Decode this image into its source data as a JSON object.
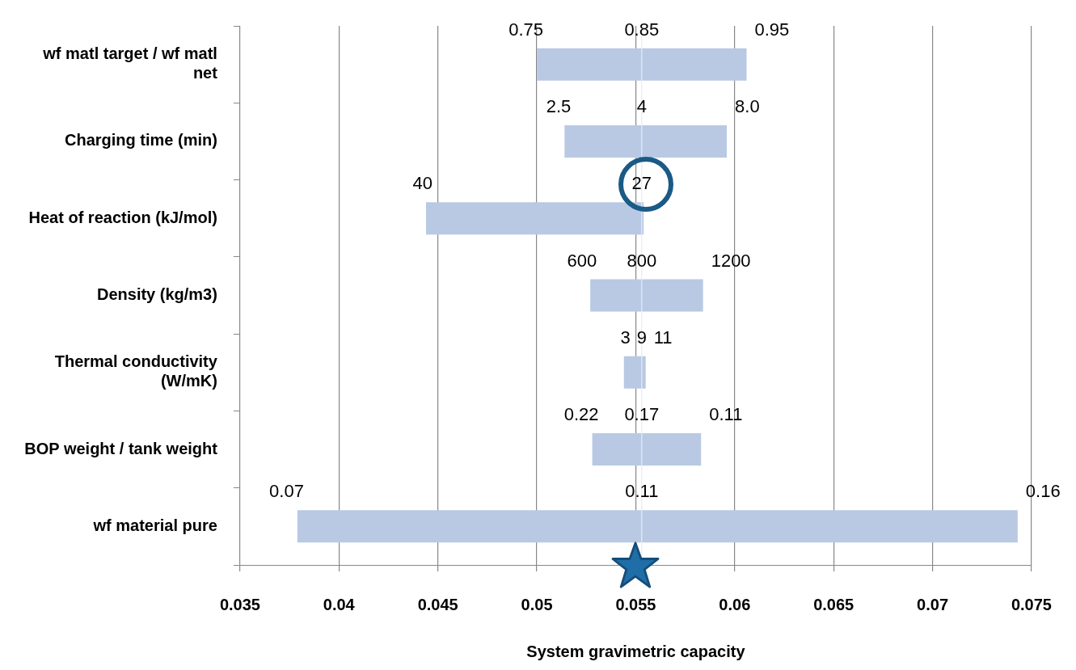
{
  "chart_data": {
    "type": "bar",
    "orientation": "horizontal",
    "xlabel": "System gravimetric capacity",
    "categories": [
      "wf matl target / wf matl net",
      "Charging time (min)",
      "Heat of reaction (kJ/mol)",
      "Density (kg/m3)",
      "Thermal conductivity (W/mK)",
      "BOP weight / tank weight",
      "wf material pure"
    ],
    "base": [
      0.05,
      0.0514,
      0.0444,
      0.0527,
      0.0544,
      0.0528,
      0.0379
    ],
    "values": [
      0.0106,
      0.0082,
      0.011,
      0.0057,
      0.0011,
      0.0055,
      0.0364
    ],
    "color": "#b9c9e3",
    "xlim": [
      0.035,
      0.075
    ],
    "xticks": [
      0.035,
      0.04,
      0.045,
      0.05,
      0.055,
      0.06,
      0.065,
      0.07,
      0.075
    ],
    "grid": "x",
    "legend": false,
    "ref_lines": [
      {
        "axis": "x",
        "value": 0.0553,
        "color": "#e6ecf5"
      }
    ],
    "annotations": [
      {
        "text": "0.75",
        "x": 0.05,
        "y": "wf matl target / wf matl net"
      },
      {
        "text": "0.85",
        "x": 0.0553,
        "y": "wf matl target / wf matl net"
      },
      {
        "text": "0.95",
        "x": 0.0606,
        "y": "wf matl target / wf matl net"
      },
      {
        "text": "2.5",
        "x": 0.0514,
        "y": "Charging time (min)"
      },
      {
        "text": "4",
        "x": 0.0553,
        "y": "Charging time (min)"
      },
      {
        "text": "8.0",
        "x": 0.0596,
        "y": "Charging time (min)"
      },
      {
        "text": "40",
        "x": 0.0444,
        "y": "Heat of reaction (kJ/mol)"
      },
      {
        "text": "27",
        "x": 0.0553,
        "y": "Heat of reaction (kJ/mol)"
      },
      {
        "text": "600",
        "x": 0.0527,
        "y": "Density (kg/m3)"
      },
      {
        "text": "800",
        "x": 0.0553,
        "y": "Density (kg/m3)"
      },
      {
        "text": "1200",
        "x": 0.0584,
        "y": "Density (kg/m3)"
      },
      {
        "text": "3",
        "x": 0.0544,
        "y": "Thermal conductivity (W/mK)"
      },
      {
        "text": "9",
        "x": 0.0553,
        "y": "Thermal conductivity (W/mK)"
      },
      {
        "text": "11",
        "x": 0.0555,
        "y": "Thermal conductivity (W/mK)"
      },
      {
        "text": "0.22",
        "x": 0.0528,
        "y": "BOP weight / tank weight"
      },
      {
        "text": "0.17",
        "x": 0.0553,
        "y": "BOP weight / tank weight"
      },
      {
        "text": "0.11",
        "x": 0.0583,
        "y": "BOP weight / tank weight"
      },
      {
        "text": "0.07",
        "x": 0.0379,
        "y": "wf material pure"
      },
      {
        "text": "0.11",
        "x": 0.0553,
        "y": "wf material pure"
      },
      {
        "text": "0.16",
        "x": 0.0743,
        "y": "wf material pure"
      }
    ]
  }
}
